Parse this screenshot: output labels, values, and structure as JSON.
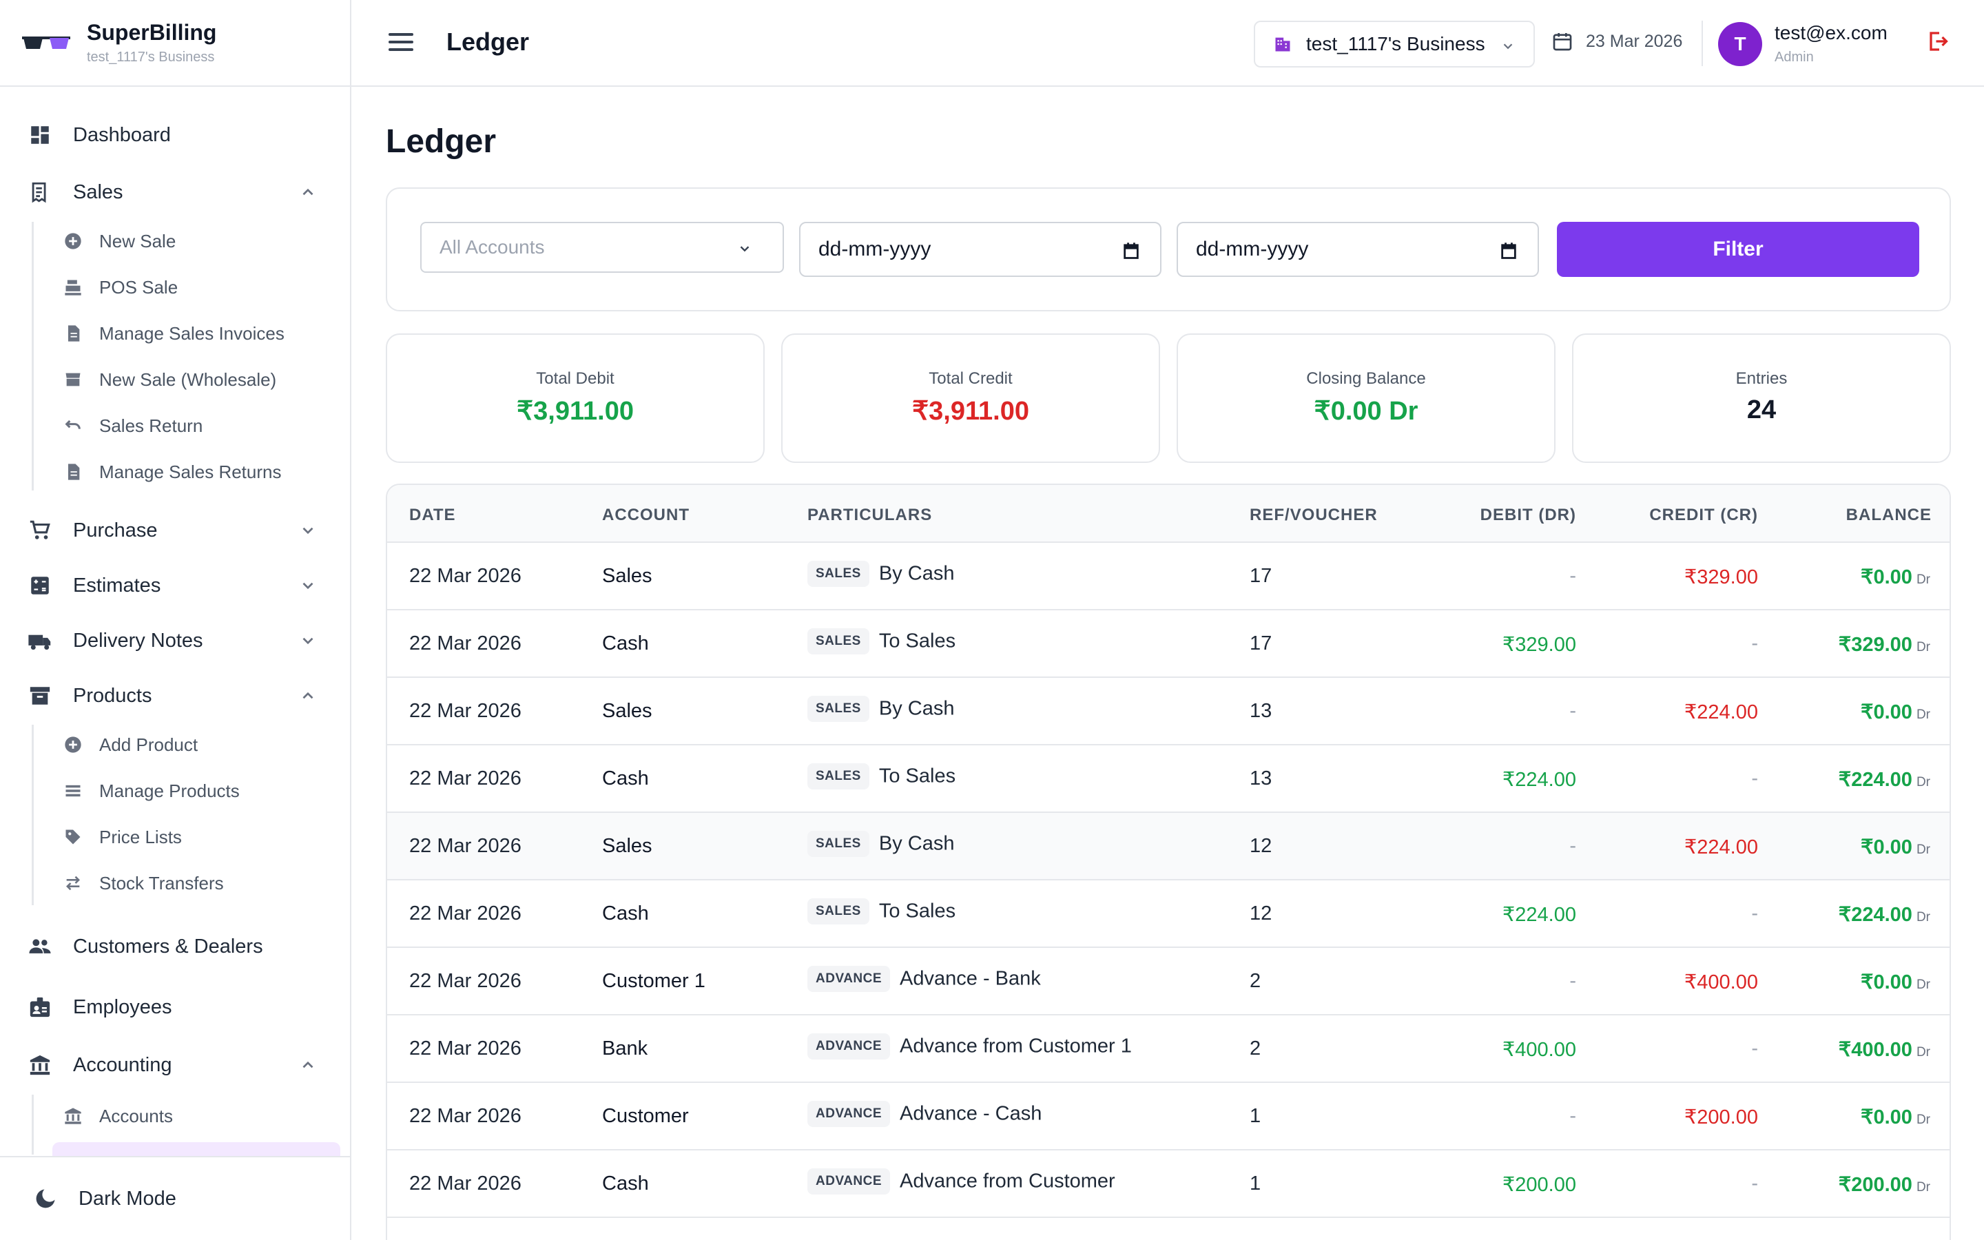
{
  "brand": {
    "name": "SuperBilling",
    "business": "test_1117's Business"
  },
  "sidebar": {
    "dashboard": "Dashboard",
    "sales": "Sales",
    "sales_items": [
      "New Sale",
      "POS Sale",
      "Manage Sales Invoices",
      "New Sale (Wholesale)",
      "Sales Return",
      "Manage Sales Returns"
    ],
    "purchase": "Purchase",
    "estimates": "Estimates",
    "delivery_notes": "Delivery Notes",
    "products": "Products",
    "products_items": [
      "Add Product",
      "Manage Products",
      "Price Lists",
      "Stock Transfers"
    ],
    "customers": "Customers & Dealers",
    "employees": "Employees",
    "accounting": "Accounting",
    "accounting_items": [
      "Accounts"
    ],
    "dark_mode": "Dark Mode"
  },
  "header": {
    "title": "Ledger",
    "business_select": "test_1117's Business",
    "date": "23 Mar 2026",
    "avatar_initial": "T",
    "user_email": "test@ex.com",
    "user_role": "Admin"
  },
  "page": {
    "title": "Ledger"
  },
  "filters": {
    "account_placeholder": "All Accounts",
    "from_date": "dd-mm-yyyy",
    "to_date": "dd-mm-yyyy",
    "filter_button": "Filter"
  },
  "stats": [
    {
      "label": "Total Debit",
      "value": "₹3,911.00",
      "color": "#16a34a"
    },
    {
      "label": "Total Credit",
      "value": "₹3,911.00",
      "color": "#dc2626"
    },
    {
      "label": "Closing Balance",
      "value": "₹0.00 Dr",
      "color": "#16a34a"
    },
    {
      "label": "Entries",
      "value": "24",
      "color": "#111827"
    }
  ],
  "table": {
    "headers": [
      "DATE",
      "ACCOUNT",
      "PARTICULARS",
      "REF/VOUCHER",
      "DEBIT (DR)",
      "CREDIT (CR)",
      "BALANCE"
    ],
    "rows": [
      {
        "date": "22 Mar 2026",
        "account": "Sales",
        "badge": "SALES",
        "particulars": "By Cash",
        "ref": "17",
        "debit": "-",
        "credit": "₹329.00",
        "balance": "₹0.00",
        "bal_type": "Dr"
      },
      {
        "date": "22 Mar 2026",
        "account": "Cash",
        "badge": "SALES",
        "particulars": "To Sales",
        "ref": "17",
        "debit": "₹329.00",
        "credit": "-",
        "balance": "₹329.00",
        "bal_type": "Dr"
      },
      {
        "date": "22 Mar 2026",
        "account": "Sales",
        "badge": "SALES",
        "particulars": "By Cash",
        "ref": "13",
        "debit": "-",
        "credit": "₹224.00",
        "balance": "₹0.00",
        "bal_type": "Dr"
      },
      {
        "date": "22 Mar 2026",
        "account": "Cash",
        "badge": "SALES",
        "particulars": "To Sales",
        "ref": "13",
        "debit": "₹224.00",
        "credit": "-",
        "balance": "₹224.00",
        "bal_type": "Dr"
      },
      {
        "date": "22 Mar 2026",
        "account": "Sales",
        "badge": "SALES",
        "particulars": "By Cash",
        "ref": "12",
        "debit": "-",
        "credit": "₹224.00",
        "balance": "₹0.00",
        "bal_type": "Dr"
      },
      {
        "date": "22 Mar 2026",
        "account": "Cash",
        "badge": "SALES",
        "particulars": "To Sales",
        "ref": "12",
        "debit": "₹224.00",
        "credit": "-",
        "balance": "₹224.00",
        "bal_type": "Dr"
      },
      {
        "date": "22 Mar 2026",
        "account": "Customer 1",
        "badge": "ADVANCE",
        "particulars": "Advance - Bank",
        "ref": "2",
        "debit": "-",
        "credit": "₹400.00",
        "balance": "₹0.00",
        "bal_type": "Dr"
      },
      {
        "date": "22 Mar 2026",
        "account": "Bank",
        "badge": "ADVANCE",
        "particulars": "Advance from Customer 1",
        "ref": "2",
        "debit": "₹400.00",
        "credit": "-",
        "balance": "₹400.00",
        "bal_type": "Dr"
      },
      {
        "date": "22 Mar 2026",
        "account": "Customer",
        "badge": "ADVANCE",
        "particulars": "Advance - Cash",
        "ref": "1",
        "debit": "-",
        "credit": "₹200.00",
        "balance": "₹0.00",
        "bal_type": "Dr"
      },
      {
        "date": "22 Mar 2026",
        "account": "Cash",
        "badge": "ADVANCE",
        "particulars": "Advance from Customer",
        "ref": "1",
        "debit": "₹200.00",
        "credit": "-",
        "balance": "₹200.00",
        "bal_type": "Dr"
      }
    ]
  },
  "colors": {
    "accent": "#7c3aed",
    "debit": "#16a34a",
    "credit": "#dc2626",
    "avatar": "#7e22ce"
  }
}
